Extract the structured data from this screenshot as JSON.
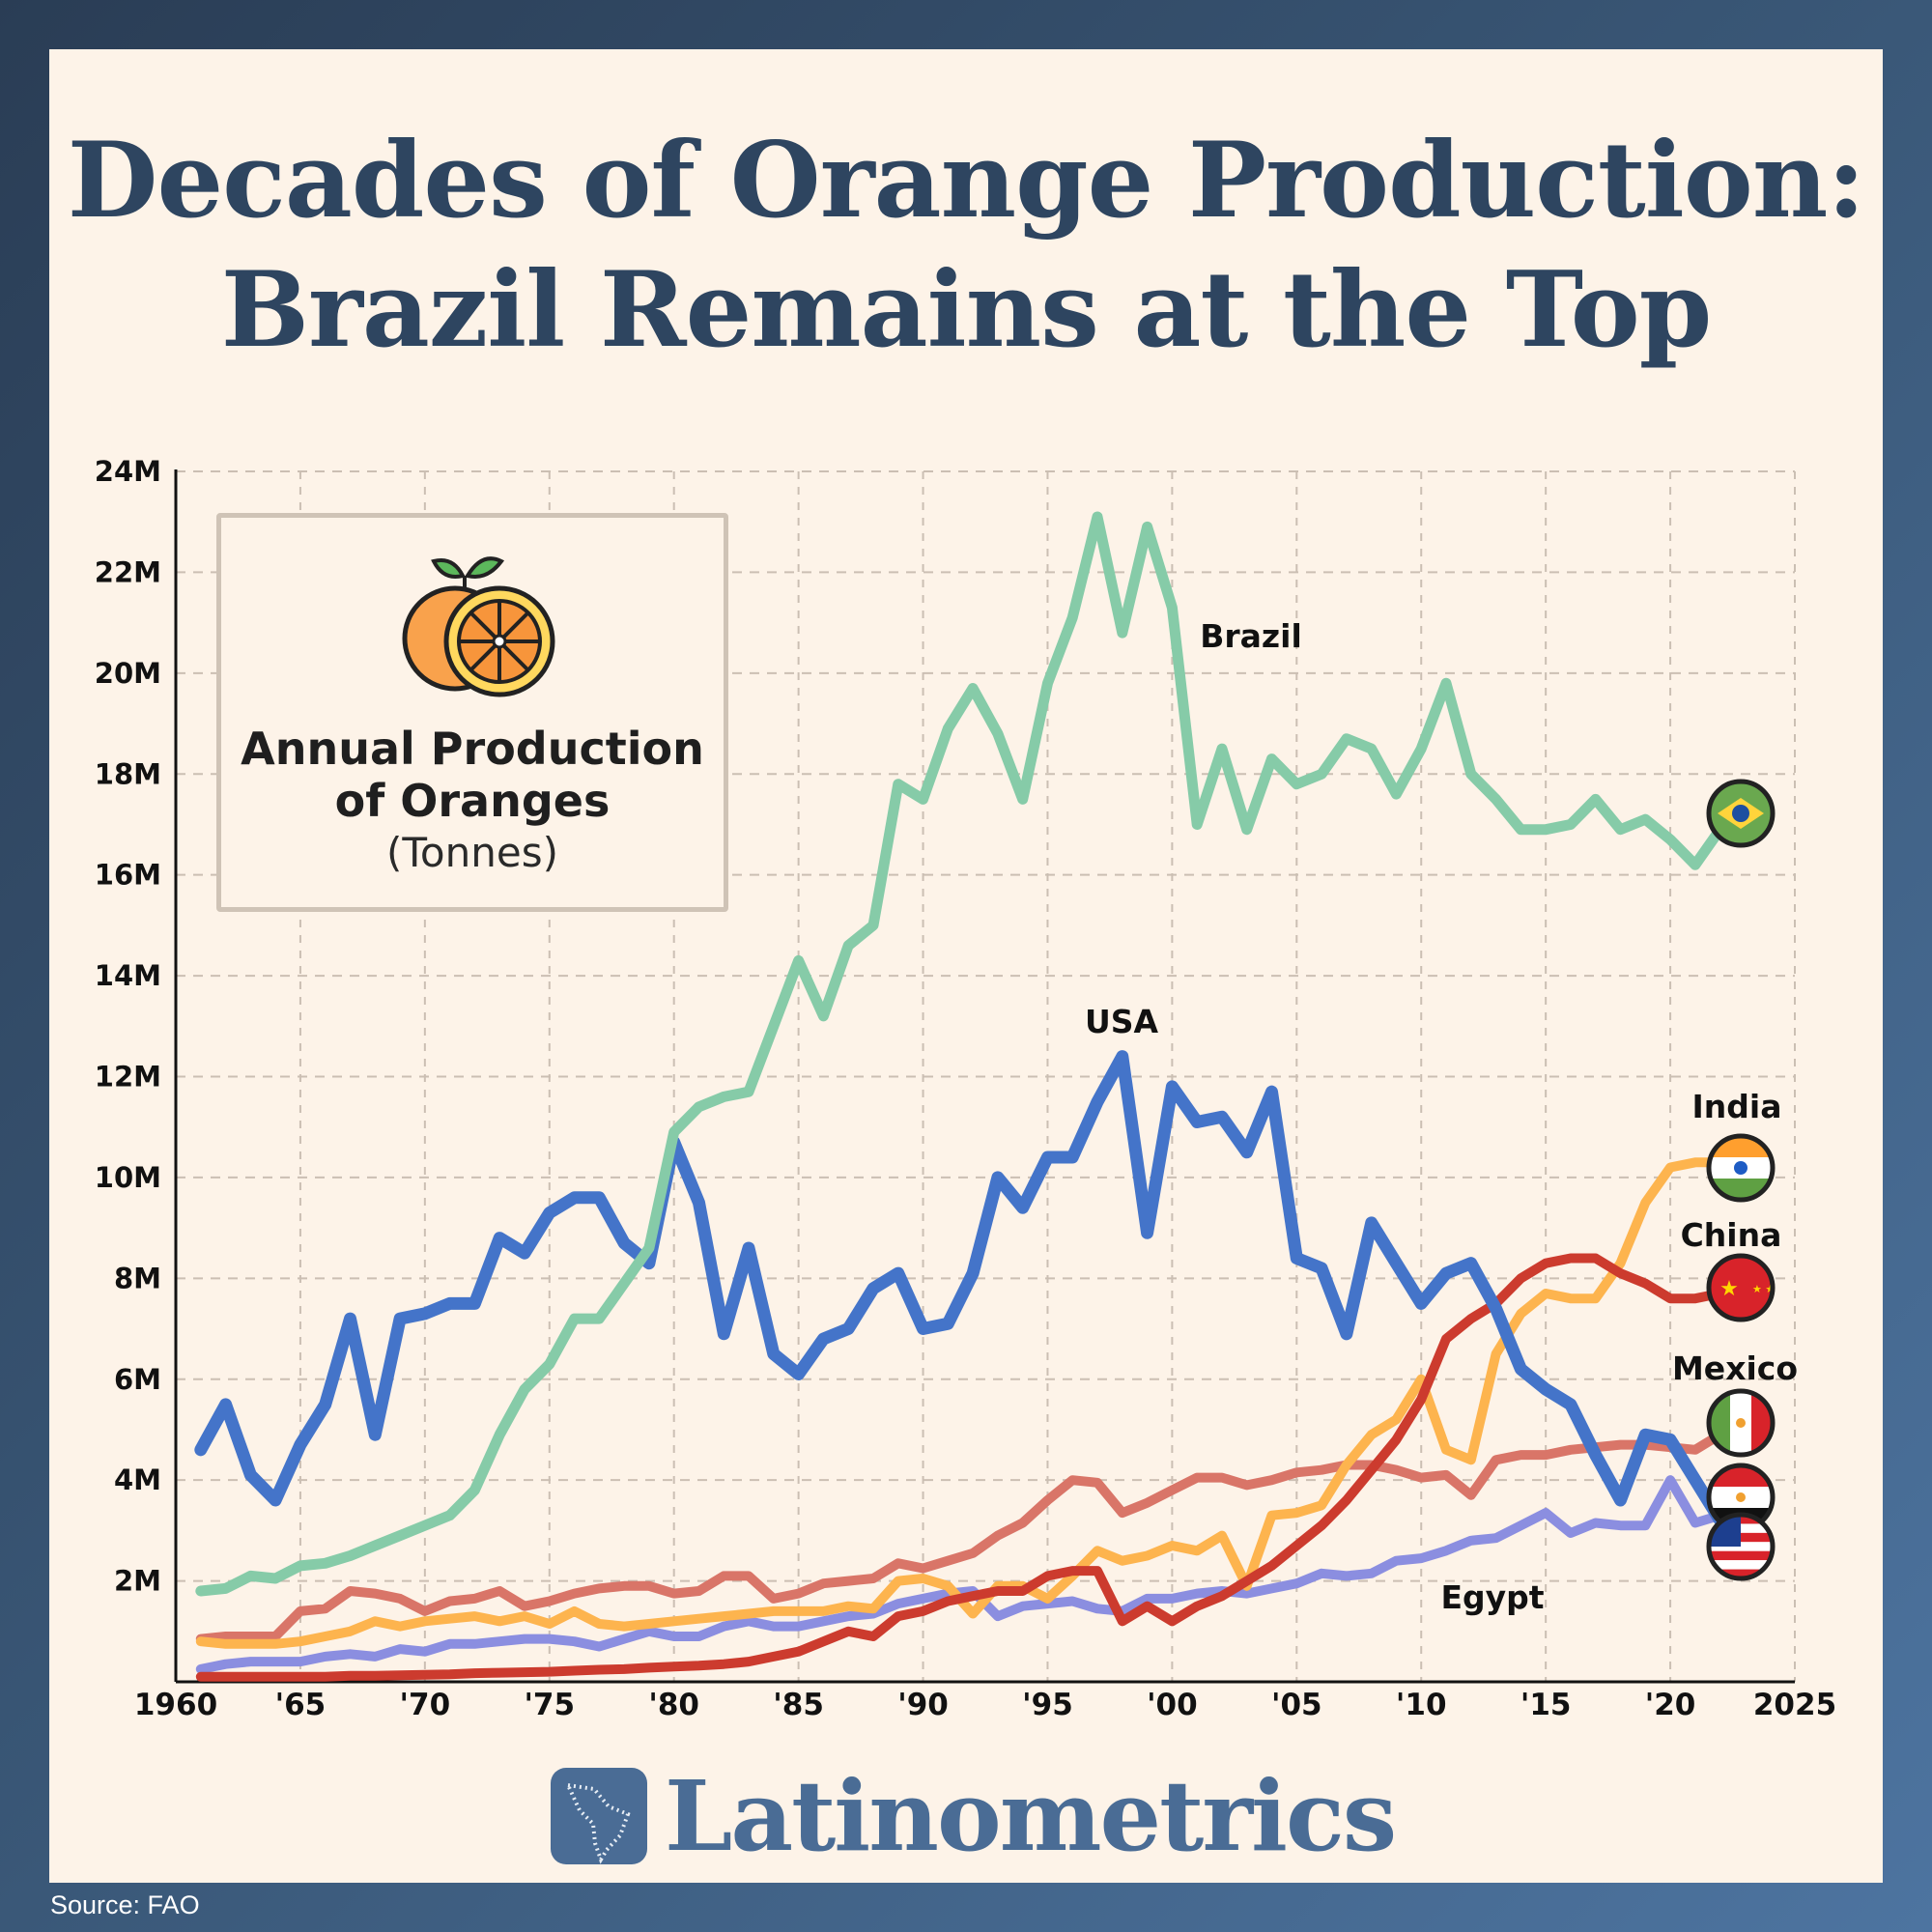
{
  "title": {
    "line1": "Decades of Orange Production:",
    "line2": "Brazil Remains at the Top"
  },
  "legend_box": {
    "title_line1": "Annual Production",
    "title_line2": "of Oranges",
    "unit": "(Tonnes)",
    "icon": "orange-icon"
  },
  "brand": {
    "name": "Latinometrics",
    "icon": "latin-america-map-icon"
  },
  "source": "Source: FAO",
  "chart_data": {
    "type": "line",
    "title": "Annual Production of Oranges (Tonnes)",
    "xlim": [
      1960,
      2025
    ],
    "ylim": [
      0,
      24000000
    ],
    "grid": true,
    "x_tick_labels": [
      {
        "value": 1960,
        "label": "1960"
      },
      {
        "value": 1965,
        "label": "'65"
      },
      {
        "value": 1970,
        "label": "'70"
      },
      {
        "value": 1975,
        "label": "'75"
      },
      {
        "value": 1980,
        "label": "'80"
      },
      {
        "value": 1985,
        "label": "'85"
      },
      {
        "value": 1990,
        "label": "'90"
      },
      {
        "value": 1995,
        "label": "'95"
      },
      {
        "value": 2000,
        "label": "'00"
      },
      {
        "value": 2005,
        "label": "'05"
      },
      {
        "value": 2010,
        "label": "'10"
      },
      {
        "value": 2015,
        "label": "'15"
      },
      {
        "value": 2020,
        "label": "'20"
      },
      {
        "value": 2025,
        "label": "2025"
      }
    ],
    "y_tick_labels": [
      {
        "value": 2,
        "label": "2M"
      },
      {
        "value": 4,
        "label": "4M"
      },
      {
        "value": 6,
        "label": "6M"
      },
      {
        "value": 8,
        "label": "8M"
      },
      {
        "value": 10,
        "label": "10M"
      },
      {
        "value": 12,
        "label": "12M"
      },
      {
        "value": 14,
        "label": "14M"
      },
      {
        "value": 16,
        "label": "16M"
      },
      {
        "value": 18,
        "label": "18M"
      },
      {
        "value": 20,
        "label": "20M"
      },
      {
        "value": 22,
        "label": "22M"
      },
      {
        "value": 24,
        "label": "24M"
      }
    ],
    "x_start": 1961,
    "value_unit": "million tonnes",
    "series": [
      {
        "name": "Mexico",
        "color": "#d97568",
        "flag": "mexico-flag",
        "values": [
          0.85,
          0.9,
          0.9,
          0.9,
          1.4,
          1.45,
          1.8,
          1.75,
          1.65,
          1.4,
          1.6,
          1.65,
          1.8,
          1.5,
          1.6,
          1.75,
          1.85,
          1.9,
          1.9,
          1.75,
          1.8,
          2.1,
          2.1,
          1.65,
          1.75,
          1.95,
          2.0,
          2.05,
          2.35,
          2.25,
          2.4,
          2.55,
          2.9,
          3.15,
          3.6,
          4.0,
          3.95,
          3.35,
          3.55,
          3.8,
          4.05,
          4.05,
          3.9,
          4.0,
          4.15,
          4.2,
          4.3,
          4.3,
          4.2,
          4.05,
          4.1,
          3.7,
          4.4,
          4.5,
          4.5,
          4.6,
          4.65,
          4.7,
          4.7,
          4.65,
          4.6,
          4.9
        ]
      },
      {
        "name": "Egypt",
        "color": "#8b8ee0",
        "flag": "egypt-flag",
        "values": [
          0.25,
          0.35,
          0.4,
          0.4,
          0.4,
          0.5,
          0.55,
          0.5,
          0.65,
          0.6,
          0.75,
          0.75,
          0.8,
          0.85,
          0.85,
          0.8,
          0.7,
          0.85,
          1.0,
          0.9,
          0.9,
          1.1,
          1.2,
          1.1,
          1.1,
          1.2,
          1.3,
          1.35,
          1.55,
          1.65,
          1.75,
          1.8,
          1.3,
          1.5,
          1.55,
          1.6,
          1.45,
          1.4,
          1.65,
          1.65,
          1.75,
          1.8,
          1.75,
          1.85,
          1.95,
          2.15,
          2.1,
          2.15,
          2.4,
          2.45,
          2.6,
          2.8,
          2.85,
          3.1,
          3.35,
          2.95,
          3.15,
          3.1,
          3.1,
          4.0,
          3.15,
          3.3
        ]
      },
      {
        "name": "India",
        "color": "#fdb44e",
        "flag": "india-flag",
        "values": [
          0.8,
          0.75,
          0.75,
          0.75,
          0.8,
          0.9,
          1.0,
          1.2,
          1.1,
          1.2,
          1.25,
          1.3,
          1.2,
          1.3,
          1.15,
          1.4,
          1.15,
          1.1,
          1.15,
          1.2,
          1.25,
          1.3,
          1.35,
          1.4,
          1.4,
          1.4,
          1.5,
          1.45,
          2.0,
          2.05,
          1.9,
          1.35,
          1.9,
          1.9,
          1.65,
          2.1,
          2.6,
          2.4,
          2.5,
          2.7,
          2.6,
          2.9,
          1.9,
          3.3,
          3.35,
          3.5,
          4.3,
          4.9,
          5.2,
          6.0,
          4.6,
          4.4,
          6.5,
          7.3,
          7.7,
          7.6,
          7.6,
          8.3,
          9.5,
          10.2,
          10.3,
          10.3
        ]
      },
      {
        "name": "China",
        "color": "#cc3b2e",
        "flag": "china-flag",
        "values": [
          0.1,
          0.1,
          0.1,
          0.1,
          0.1,
          0.1,
          0.12,
          0.12,
          0.13,
          0.14,
          0.15,
          0.17,
          0.18,
          0.19,
          0.2,
          0.22,
          0.24,
          0.25,
          0.28,
          0.3,
          0.32,
          0.35,
          0.4,
          0.5,
          0.6,
          0.8,
          1.0,
          0.9,
          1.3,
          1.4,
          1.6,
          1.7,
          1.8,
          1.8,
          2.1,
          2.2,
          2.2,
          1.2,
          1.5,
          1.2,
          1.5,
          1.7,
          2.0,
          2.3,
          2.7,
          3.1,
          3.6,
          4.2,
          4.8,
          5.6,
          6.8,
          7.2,
          7.5,
          8.0,
          8.3,
          8.4,
          8.4,
          8.1,
          7.9,
          7.6,
          7.6,
          7.7
        ]
      },
      {
        "name": "USA",
        "color": "#4474c9",
        "flag": "usa-flag",
        "values": [
          4.6,
          5.5,
          4.1,
          3.6,
          4.7,
          5.5,
          7.2,
          4.9,
          7.2,
          7.3,
          7.5,
          7.5,
          8.8,
          8.5,
          9.3,
          9.6,
          9.6,
          8.7,
          8.3,
          10.7,
          9.5,
          6.9,
          8.6,
          6.5,
          6.1,
          6.8,
          7.0,
          7.8,
          8.1,
          7.0,
          7.1,
          8.1,
          10.0,
          9.4,
          10.4,
          10.4,
          11.5,
          12.4,
          8.9,
          11.8,
          11.1,
          11.2,
          10.5,
          11.7,
          8.4,
          8.2,
          6.9,
          9.1,
          8.3,
          7.5,
          8.1,
          8.3,
          7.4,
          6.2,
          5.8,
          5.5,
          4.5,
          3.6,
          4.9,
          4.8,
          4.0,
          3.2
        ]
      },
      {
        "name": "Brazil",
        "color": "#86cba8",
        "flag": "brazil-flag",
        "values": [
          1.8,
          1.85,
          2.1,
          2.05,
          2.3,
          2.35,
          2.5,
          2.7,
          2.9,
          3.1,
          3.3,
          3.8,
          4.9,
          5.8,
          6.3,
          7.2,
          7.2,
          7.9,
          8.6,
          10.9,
          11.4,
          11.6,
          11.7,
          13.0,
          14.3,
          13.2,
          14.6,
          15.0,
          17.8,
          17.5,
          18.9,
          19.7,
          18.8,
          17.5,
          19.8,
          21.1,
          23.1,
          20.8,
          22.9,
          21.3,
          17.0,
          18.5,
          16.9,
          18.3,
          17.8,
          18.0,
          18.7,
          18.5,
          17.6,
          18.5,
          19.8,
          18.0,
          17.5,
          16.9,
          16.9,
          17.0,
          17.5,
          16.9,
          17.1,
          16.7,
          16.2,
          16.9
        ]
      }
    ]
  }
}
